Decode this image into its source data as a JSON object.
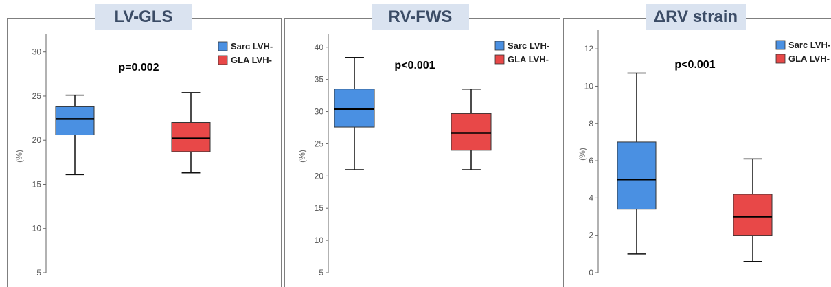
{
  "chart_data": [
    {
      "type": "box",
      "title": "LV-GLS",
      "ylabel": "(%)",
      "annotation": "p=0.002",
      "ylim": [
        5,
        32
      ],
      "yticks": [
        5,
        10,
        15,
        20,
        25,
        30
      ],
      "legend": {
        "position": "top-right",
        "entries": [
          "Sarc LVH-",
          "GLA LVH-"
        ]
      },
      "series": [
        {
          "name": "Sarc LVH-",
          "color": "#4a90e2",
          "min": 16.1,
          "q1": 20.6,
          "median": 22.4,
          "q3": 23.8,
          "max": 25.1
        },
        {
          "name": "GLA LVH-",
          "color": "#e84848",
          "min": 16.3,
          "q1": 18.7,
          "median": 20.2,
          "q3": 22.0,
          "max": 25.4
        }
      ]
    },
    {
      "type": "box",
      "title": "RV-FWS",
      "ylabel": "(%)",
      "annotation": "p<0.001",
      "ylim": [
        5,
        42
      ],
      "yticks": [
        5,
        10,
        15,
        20,
        25,
        30,
        35,
        40
      ],
      "legend": {
        "position": "top-right",
        "entries": [
          "Sarc LVH-",
          "GLA LVH-"
        ]
      },
      "series": [
        {
          "name": "Sarc LVH-",
          "color": "#4a90e2",
          "min": 21.0,
          "q1": 27.6,
          "median": 30.4,
          "q3": 33.5,
          "max": 38.4
        },
        {
          "name": "GLA LVH-",
          "color": "#e84848",
          "min": 21.0,
          "q1": 24.0,
          "median": 26.7,
          "q3": 29.7,
          "max": 33.5
        }
      ]
    },
    {
      "type": "box",
      "title": "ΔRV strain",
      "ylabel": "(%)",
      "annotation": "p<0.001",
      "ylim": [
        0,
        13
      ],
      "yticks": [
        0,
        2,
        4,
        6,
        8,
        10,
        12
      ],
      "legend": {
        "position": "top-right",
        "entries": [
          "Sarc LVH-",
          "GLA LVH-"
        ]
      },
      "series": [
        {
          "name": "Sarc LVH-",
          "color": "#4a90e2",
          "min": 1.0,
          "q1": 3.4,
          "median": 5.0,
          "q3": 7.0,
          "max": 10.7
        },
        {
          "name": "GLA LVH-",
          "color": "#e84848",
          "min": 0.6,
          "q1": 2.0,
          "median": 3.0,
          "q3": 4.2,
          "max": 6.1
        }
      ]
    }
  ]
}
